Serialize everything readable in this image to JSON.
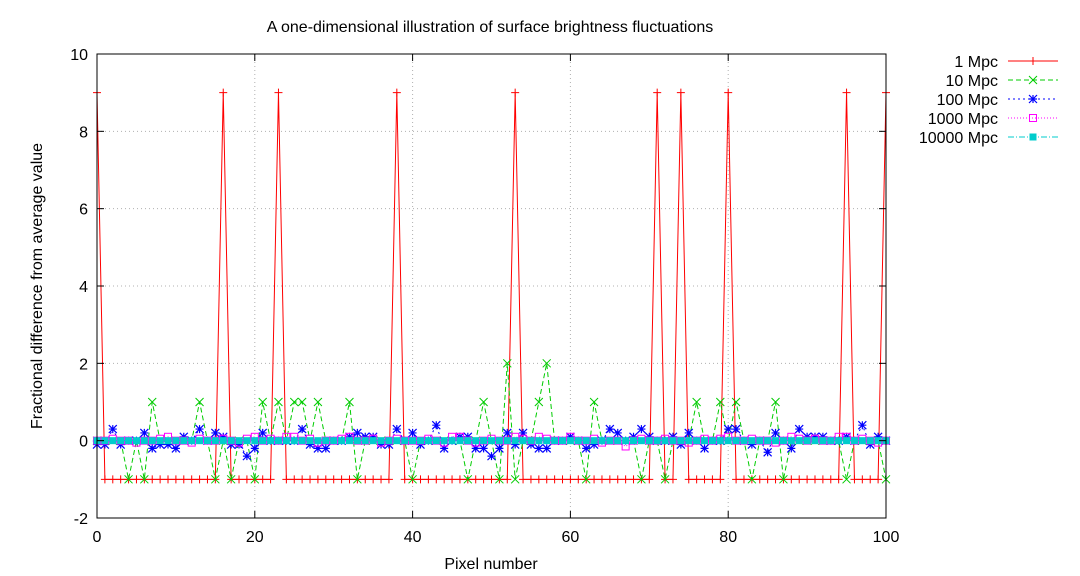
{
  "chart_data": {
    "type": "line",
    "title": "A one-dimensional illustration of surface brightness fluctuations",
    "xlabel": "Pixel number",
    "ylabel": "Fractional difference from average value",
    "xlim": [
      0,
      100
    ],
    "ylim": [
      -2,
      10
    ],
    "xticks": [
      0,
      20,
      40,
      60,
      80,
      100
    ],
    "yticks": [
      -2,
      0,
      2,
      4,
      6,
      8,
      10
    ],
    "grid": true,
    "legend_position": "outside-top-right",
    "x": [
      0,
      1,
      2,
      3,
      4,
      5,
      6,
      7,
      8,
      9,
      10,
      11,
      12,
      13,
      14,
      15,
      16,
      17,
      18,
      19,
      20,
      21,
      22,
      23,
      24,
      25,
      26,
      27,
      28,
      29,
      30,
      31,
      32,
      33,
      34,
      35,
      36,
      37,
      38,
      39,
      40,
      41,
      42,
      43,
      44,
      45,
      46,
      47,
      48,
      49,
      50,
      51,
      52,
      53,
      54,
      55,
      56,
      57,
      58,
      59,
      60,
      61,
      62,
      63,
      64,
      65,
      66,
      67,
      68,
      69,
      70,
      71,
      72,
      73,
      74,
      75,
      76,
      77,
      78,
      79,
      80,
      81,
      82,
      83,
      84,
      85,
      86,
      87,
      88,
      89,
      90,
      91,
      92,
      93,
      94,
      95,
      96,
      97,
      98,
      99,
      100
    ],
    "series": [
      {
        "name": "1 Mpc",
        "color": "#ff0000",
        "dash": "",
        "marker": "plus",
        "values": [
          9,
          -1,
          -1,
          -1,
          -1,
          -1,
          -1,
          -1,
          -1,
          -1,
          -1,
          -1,
          -1,
          -1,
          -1,
          -1,
          9,
          -1,
          -1,
          -1,
          -1,
          -1,
          -1,
          9,
          -1,
          -1,
          -1,
          -1,
          -1,
          -1,
          -1,
          -1,
          -1,
          -1,
          -1,
          -1,
          -1,
          -1,
          9,
          -1,
          -1,
          -1,
          -1,
          -1,
          -1,
          -1,
          -1,
          -1,
          -1,
          -1,
          -1,
          -1,
          -1,
          9,
          -1,
          -1,
          -1,
          -1,
          -1,
          -1,
          -1,
          -1,
          -1,
          -1,
          -1,
          -1,
          -1,
          -1,
          -1,
          -1,
          -1,
          9,
          -1,
          -1,
          9,
          -1,
          -1,
          -1,
          -1,
          -1,
          9,
          -1,
          -1,
          -1,
          -1,
          -1,
          -1,
          -1,
          -1,
          -1,
          -1,
          -1,
          -1,
          -1,
          -1,
          9,
          -1,
          -1,
          -1,
          -1,
          9
        ]
      },
      {
        "name": "10 Mpc",
        "color": "#00cc00",
        "dash": "5,3",
        "marker": "cross",
        "values": [
          0,
          0,
          0,
          0,
          -1,
          0,
          -1,
          1,
          0,
          0,
          0,
          0,
          0,
          1,
          0,
          -1,
          0,
          -1,
          0,
          0,
          -1,
          1,
          0,
          1,
          0,
          1,
          1,
          0,
          1,
          0,
          0,
          0,
          1,
          -1,
          0,
          0,
          0,
          0,
          0,
          0,
          -1,
          0,
          0,
          0,
          0,
          0,
          0,
          -1,
          0,
          1,
          0,
          -1,
          2,
          -1,
          0,
          0,
          1,
          2,
          0,
          0,
          0,
          0,
          -1,
          1,
          0,
          0,
          0,
          0,
          0,
          -1,
          0,
          0,
          -1,
          0,
          0,
          0,
          1,
          0,
          0,
          1,
          0,
          1,
          0,
          -1,
          0,
          0,
          1,
          -1,
          0,
          0,
          0,
          0,
          0,
          0,
          0,
          -1,
          0,
          0,
          0,
          0,
          -1
        ]
      },
      {
        "name": "100 Mpc",
        "color": "#0000ff",
        "dash": "2,3",
        "marker": "star",
        "values": [
          -0.1,
          -0.1,
          0.3,
          -0.1,
          0,
          0,
          0.2,
          -0.2,
          -0.1,
          -0.1,
          -0.2,
          0.1,
          0,
          0.3,
          0,
          0.2,
          0.1,
          -0.1,
          -0.1,
          -0.4,
          -0.2,
          0.2,
          0,
          0,
          0,
          0,
          0.3,
          -0.1,
          -0.2,
          -0.2,
          0,
          0,
          0.1,
          0.2,
          0.1,
          0.1,
          -0.1,
          -0.1,
          0.3,
          0,
          0.2,
          -0.1,
          0,
          0.4,
          -0.2,
          0,
          0.1,
          0.1,
          -0.2,
          -0.2,
          -0.4,
          -0.2,
          0.2,
          -0.1,
          0.2,
          -0.1,
          -0.2,
          -0.2,
          0,
          0,
          0.1,
          0,
          -0.2,
          -0.1,
          0,
          0.3,
          0.2,
          0,
          0.1,
          0.3,
          0.1,
          0,
          0,
          0.1,
          -0.1,
          0.2,
          0,
          -0.2,
          0,
          0,
          0.3,
          0.3,
          0,
          -0.1,
          0,
          -0.3,
          0.2,
          0,
          -0.2,
          0.3,
          0.1,
          0.1,
          0.1,
          0,
          0,
          0.1,
          0,
          0.4,
          -0.1,
          0.1,
          0
        ]
      },
      {
        "name": "1000 Mpc",
        "color": "#ff00ff",
        "dash": "1,2",
        "marker": "square",
        "values": [
          0,
          0,
          0.05,
          0,
          0,
          -0.05,
          0,
          0,
          0.05,
          0.1,
          0,
          0,
          -0.05,
          0.05,
          0,
          0,
          0.05,
          0,
          -0.05,
          0.05,
          0.1,
          0,
          0.05,
          0,
          0.1,
          0.1,
          0,
          0.05,
          -0.05,
          0,
          0,
          0.05,
          0.1,
          0,
          0,
          0.05,
          -0.05,
          0,
          0.05,
          0,
          0,
          0,
          0.05,
          0,
          -0.05,
          0.1,
          0.1,
          0,
          -0.05,
          0,
          0.05,
          0,
          0,
          0.1,
          0.05,
          0,
          0.1,
          0.05,
          0,
          0,
          0.1,
          0,
          0,
          0.05,
          -0.05,
          0,
          0,
          -0.15,
          0,
          0.05,
          0,
          0,
          0.05,
          0,
          0,
          -0.05,
          0,
          0.05,
          0,
          0.05,
          0.1,
          0,
          0,
          0.05,
          0,
          0,
          -0.05,
          0,
          0.1,
          0.05,
          0,
          0.05,
          0,
          0,
          0.1,
          0.1,
          0,
          0.05,
          0,
          -0.05,
          0
        ]
      },
      {
        "name": "10000 Mpc",
        "color": "#00cccc",
        "dash": "6,2,1,2",
        "marker": "filled-square",
        "values": [
          0,
          0,
          0,
          0,
          0,
          0,
          0,
          0,
          0,
          0,
          0,
          0,
          0,
          0,
          0,
          0,
          0,
          0,
          0,
          0,
          0,
          0,
          0,
          0,
          0,
          0,
          0,
          0,
          0,
          0,
          0,
          0,
          0,
          0,
          0,
          0,
          0,
          0,
          0,
          0,
          0,
          0,
          0,
          0,
          0,
          0,
          0,
          0,
          0,
          0,
          0,
          0,
          0,
          0,
          0,
          0,
          0,
          0,
          0,
          0,
          0,
          0,
          0,
          0,
          0,
          0,
          0,
          0,
          0,
          0,
          0,
          0,
          0,
          0,
          0,
          0,
          0,
          0,
          0,
          0,
          0,
          0,
          0,
          0,
          0,
          0,
          0,
          0,
          0,
          0,
          0,
          0,
          0,
          0,
          0,
          0,
          0,
          0,
          0,
          0,
          0
        ]
      }
    ]
  }
}
